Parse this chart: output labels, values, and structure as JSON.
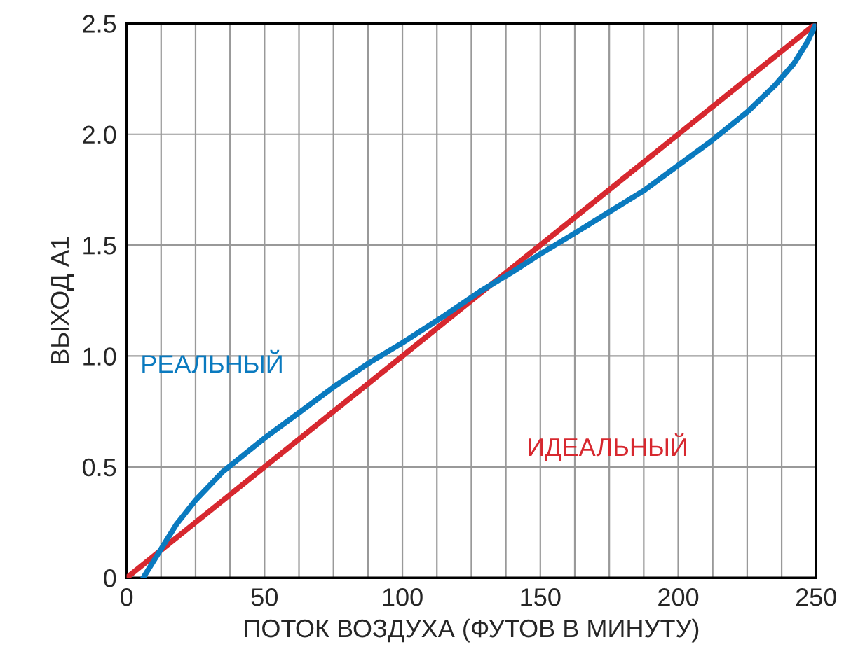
{
  "chart_data": {
    "type": "line",
    "xlabel": "ПОТОК ВОЗДУХА (ФУТОВ В МИНУТУ)",
    "ylabel": "ВЫХОД А1",
    "series": [
      {
        "name": "РЕАЛЬНЫЙ",
        "color": "#0a7abf",
        "x": [
          6,
          9,
          12,
          18,
          25,
          35,
          50,
          62,
          75,
          88,
          100,
          115,
          128,
          140,
          150,
          162,
          175,
          188,
          200,
          212,
          225,
          235,
          242,
          247,
          250
        ],
        "values": [
          0,
          0.06,
          0.12,
          0.24,
          0.35,
          0.48,
          0.63,
          0.74,
          0.86,
          0.97,
          1.06,
          1.18,
          1.29,
          1.38,
          1.46,
          1.55,
          1.65,
          1.75,
          1.86,
          1.97,
          2.1,
          2.22,
          2.32,
          2.42,
          2.5
        ]
      },
      {
        "name": "ИДЕАЛЬНЫЙ",
        "color": "#d7282f",
        "x": [
          0,
          250
        ],
        "values": [
          0,
          2.5
        ]
      }
    ],
    "xlim": [
      0,
      250
    ],
    "ylim": [
      0,
      2.5
    ],
    "xticks": [
      0,
      {
        "value": 12.5,
        "label": null
      },
      {
        "value": 25,
        "label": null
      },
      {
        "value": 37.5,
        "label": null
      },
      50,
      {
        "value": 62.5,
        "label": null
      },
      {
        "value": 75,
        "label": null
      },
      {
        "value": 87.5,
        "label": null
      },
      100,
      {
        "value": 112.5,
        "label": null
      },
      {
        "value": 125,
        "label": null
      },
      {
        "value": 137.5,
        "label": null
      },
      150,
      {
        "value": 162.5,
        "label": null
      },
      {
        "value": 175,
        "label": null
      },
      {
        "value": 187.5,
        "label": null
      },
      200,
      {
        "value": 212.5,
        "label": null
      },
      {
        "value": 225,
        "label": null
      },
      {
        "value": 237.5,
        "label": null
      },
      250
    ],
    "yticks": [
      0,
      0.5,
      {
        "value": 1,
        "label": "1.0"
      },
      1.5,
      {
        "value": 2,
        "label": "2.0"
      },
      2.5
    ],
    "grid": true,
    "legend": false,
    "line_style": "solid",
    "marker": "none"
  }
}
